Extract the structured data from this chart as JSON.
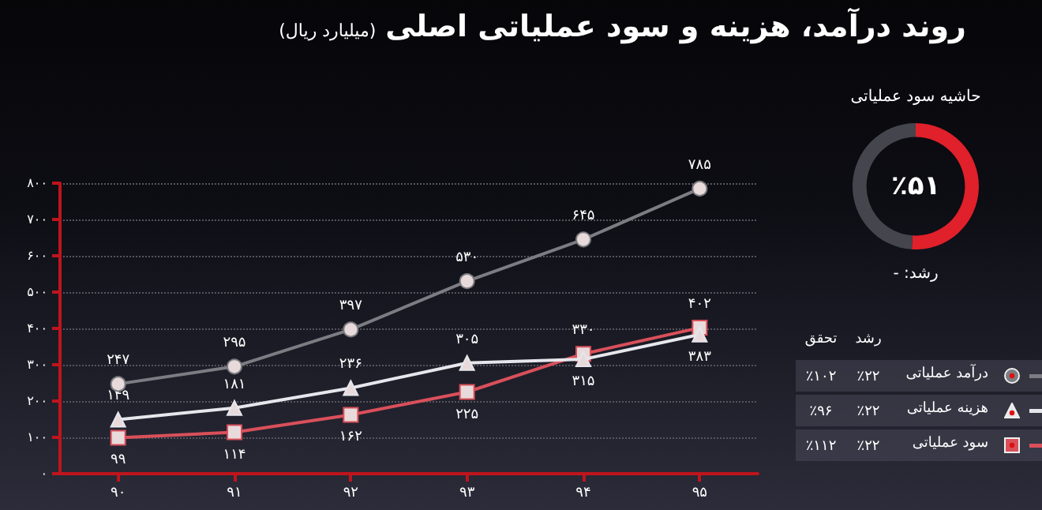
{
  "chart_data": [
    {
      "type": "line",
      "title": "روند درآمد، هزینه و سود عملیاتی اصلی",
      "subtitle": "(میلیارد ریال)",
      "categories": [
        "۹۰",
        "۹۱",
        "۹۲",
        "۹۳",
        "۹۴",
        "۹۵"
      ],
      "series": [
        {
          "name": "درآمد عملیاتی",
          "color": "#7c7c82",
          "marker": "circle",
          "values": [
            247,
            295,
            397,
            530,
            645,
            785
          ],
          "value_labels": [
            "۲۴۷",
            "۲۹۵",
            "۳۹۷",
            "۵۳۰",
            "۶۴۵",
            "۷۸۵"
          ]
        },
        {
          "name": "هزینه عملیاتی",
          "color": "#e6e6ec",
          "marker": "triangle",
          "values": [
            149,
            181,
            236,
            305,
            315,
            383
          ],
          "value_labels": [
            "۱۴۹",
            "۱۸۱",
            "۲۳۶",
            "۳۰۵",
            "۳۱۵",
            "۳۸۳"
          ]
        },
        {
          "name": "سود عملیاتی",
          "color": "#d9505a",
          "marker": "square",
          "values": [
            99,
            114,
            162,
            225,
            330,
            402
          ],
          "value_labels": [
            "۹۹",
            "۱۱۴",
            "۱۶۲",
            "۲۲۵",
            "۳۳۰",
            "۴۰۲"
          ]
        }
      ],
      "ylim": [
        0,
        800
      ],
      "yticks": [
        {
          "value": 0,
          "label": "۰"
        },
        {
          "value": 100,
          "label": "۱۰۰"
        },
        {
          "value": 200,
          "label": "۲۰۰"
        },
        {
          "value": 300,
          "label": "۳۰۰"
        },
        {
          "value": 400,
          "label": "۴۰۰"
        },
        {
          "value": 500,
          "label": "۵۰۰"
        },
        {
          "value": 600,
          "label": "۶۰۰"
        },
        {
          "value": 700,
          "label": "۷۰۰"
        },
        {
          "value": 800,
          "label": "۸۰۰"
        }
      ],
      "grid": "y",
      "legend": "bottom right",
      "line_style": "solid"
    },
    {
      "type": "donut",
      "title": "حاشیه سود عملیاتی",
      "categories": [
        null,
        null
      ],
      "values": [
        51,
        49
      ],
      "colors": [
        "#e0202a",
        "#45454d"
      ],
      "value_labels": [
        "٪۵۱",
        null
      ],
      "annotations": [
        "رشد: -"
      ]
    },
    {
      "type": "other",
      "annotations": [
        "رشد",
        "تحقق",
        "٪۲۲",
        "٪۱۰۲",
        "٪۲۲",
        "٪۹۶",
        "٪۲۲",
        "٪۱۱۲"
      ]
    }
  ]
}
